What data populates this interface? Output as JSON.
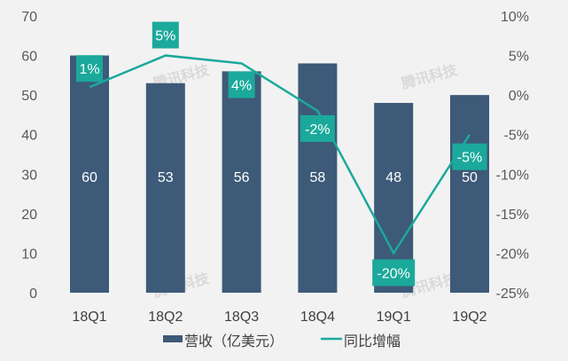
{
  "chart_data": {
    "type": "bar+line",
    "categories": [
      "18Q1",
      "18Q2",
      "18Q3",
      "18Q4",
      "19Q1",
      "19Q2"
    ],
    "series": [
      {
        "name": "营收（亿美元）",
        "type": "bar",
        "axis": "left",
        "values": [
          60,
          53,
          56,
          58,
          48,
          50
        ],
        "labels": [
          "60",
          "53",
          "56",
          "58",
          "48",
          "50"
        ],
        "color": "#3d5a78"
      },
      {
        "name": "同比增幅",
        "type": "line",
        "axis": "right",
        "values": [
          1,
          5,
          4,
          -2,
          -20,
          -5
        ],
        "labels": [
          "1%",
          "5%",
          "4%",
          "-2%",
          "-20%",
          "-5%"
        ],
        "color": "#1ba99b"
      }
    ],
    "left_axis": {
      "ylim": [
        0,
        70
      ],
      "ticks": [
        "0",
        "10",
        "20",
        "30",
        "40",
        "50",
        "60",
        "70"
      ]
    },
    "right_axis": {
      "ylim": [
        -25,
        10
      ],
      "ticks": [
        "-25%",
        "-20%",
        "-15%",
        "-10%",
        "-5%",
        "0%",
        "5%",
        "10%"
      ]
    },
    "grid": false,
    "legend": "bottom",
    "watermark": "腾讯科技"
  }
}
